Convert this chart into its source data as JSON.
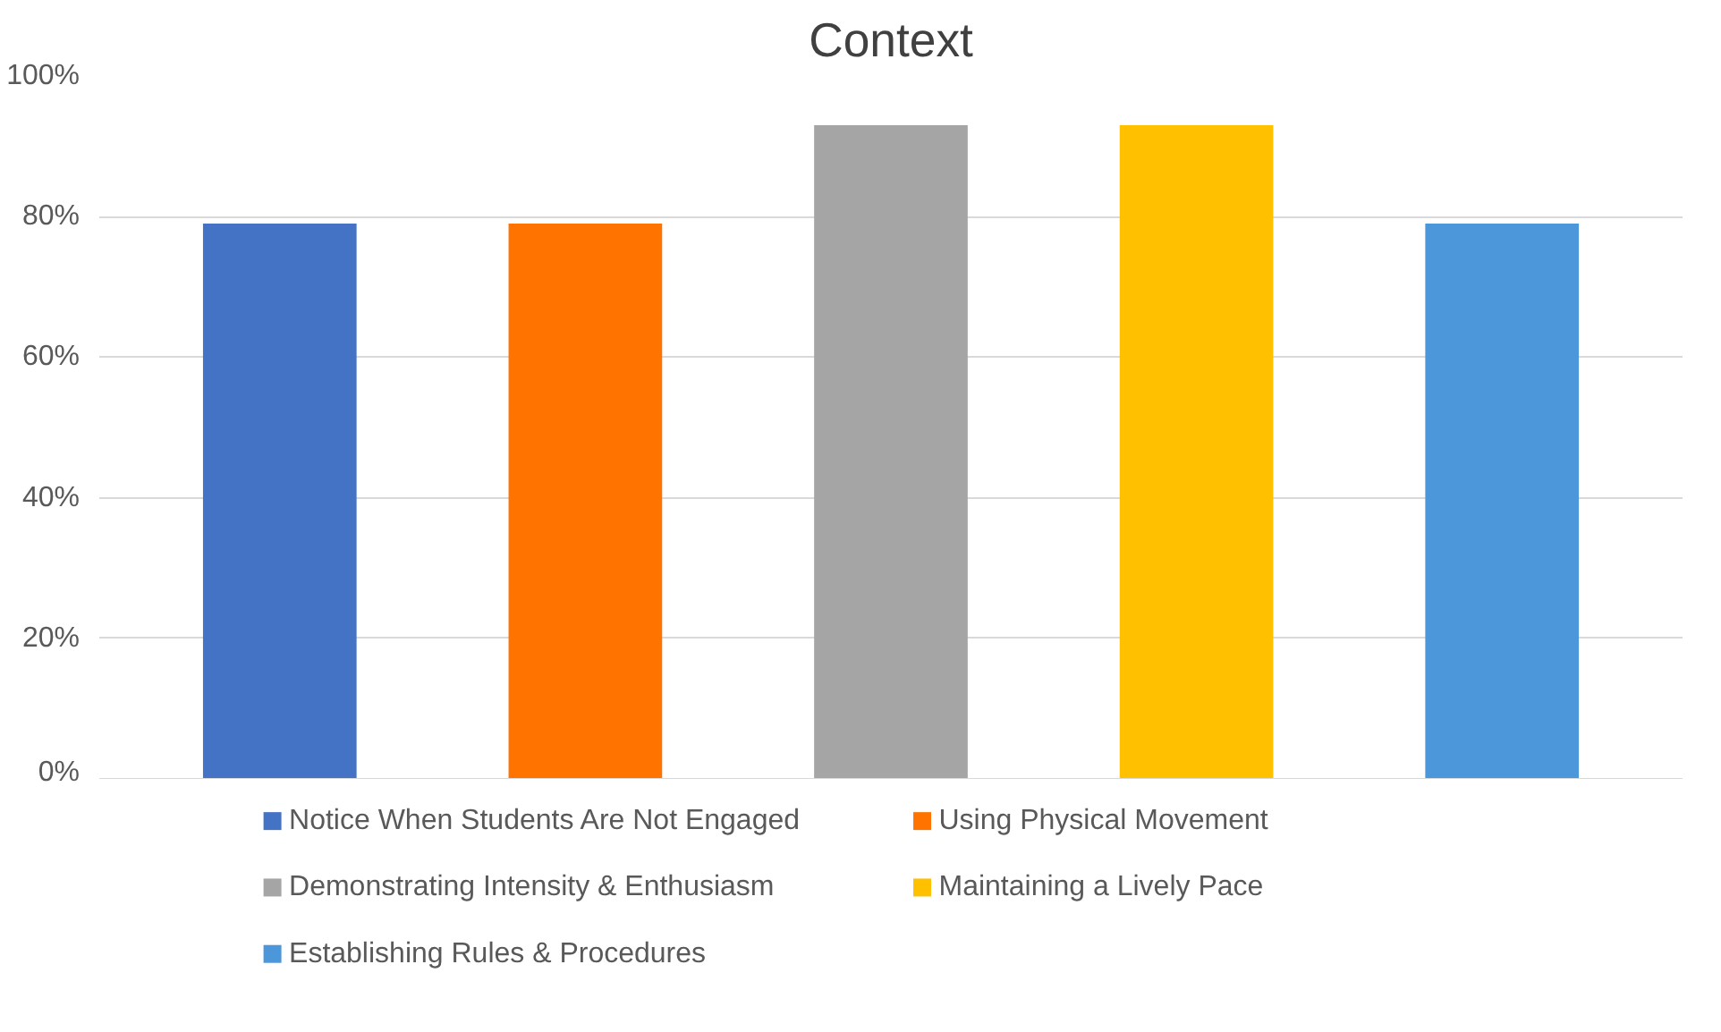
{
  "chart_data": {
    "type": "bar",
    "title": "Context",
    "categories": [
      null
    ],
    "series": [
      {
        "name": "Notice When Students Are Not Engaged",
        "color": "#4472c4",
        "values": [
          79
        ]
      },
      {
        "name": "Using Physical Movement",
        "color": "#ff7400",
        "values": [
          79
        ]
      },
      {
        "name": "Demonstrating Intensity & Enthusiasm",
        "color": "#a5a5a5",
        "values": [
          93
        ]
      },
      {
        "name": "Maintaining a Lively Pace",
        "color": "#ffc000",
        "values": [
          93
        ]
      },
      {
        "name": "Establishing Rules & Procedures",
        "color": "#4c97d9",
        "values": [
          79
        ]
      }
    ],
    "ylim": [
      0,
      100
    ],
    "yticks": [
      {
        "value": 0,
        "label": "0%"
      },
      {
        "value": 20,
        "label": "20%"
      },
      {
        "value": 40,
        "label": "40%"
      },
      {
        "value": 60,
        "label": "60%"
      },
      {
        "value": 80,
        "label": "80%"
      },
      {
        "value": 100,
        "label": "100%"
      }
    ],
    "grid": "y",
    "legend": "bottom"
  }
}
